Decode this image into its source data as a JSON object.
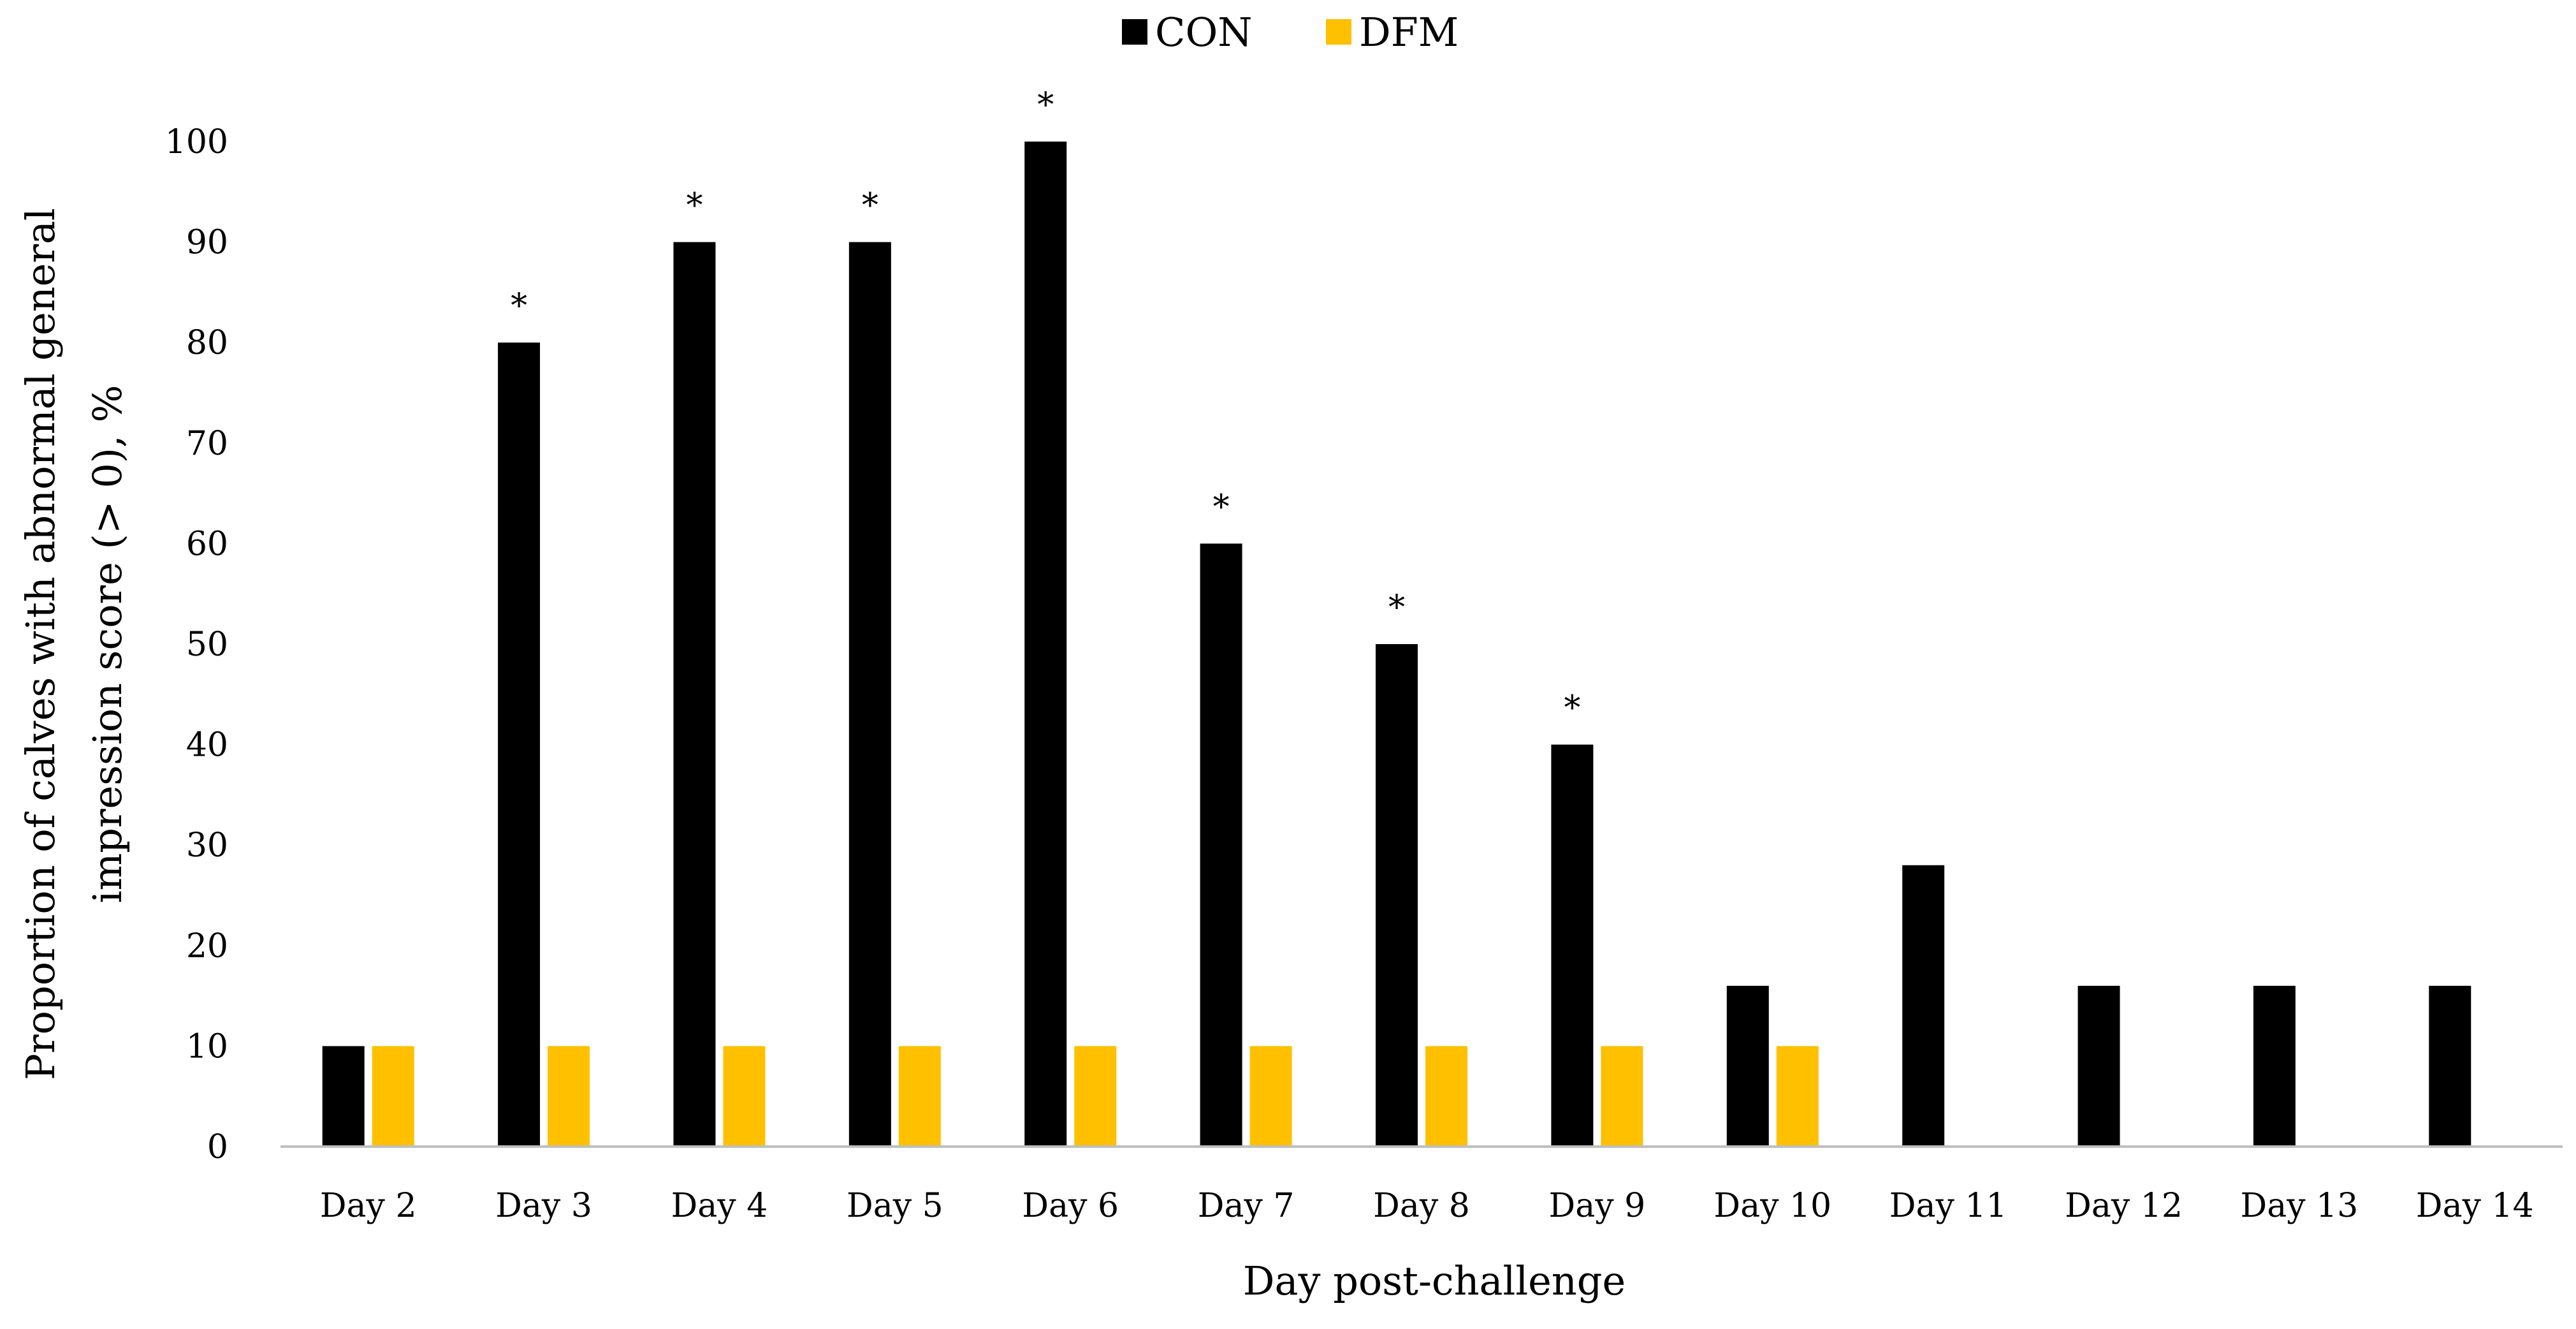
{
  "chart_data": {
    "type": "bar",
    "title": "",
    "xlabel": "Day post-challenge",
    "ylabel_lines": [
      "Proportion of calves with abnormal general",
      "impression score (> 0), %"
    ],
    "ylim": [
      0,
      100
    ],
    "yticks": [
      0,
      10,
      20,
      30,
      40,
      50,
      60,
      70,
      80,
      90,
      100
    ],
    "categories": [
      "Day 2",
      "Day 3",
      "Day 4",
      "Day 5",
      "Day 6",
      "Day 7",
      "Day 8",
      "Day 9",
      "Day 10",
      "Day 11",
      "Day 12",
      "Day 13",
      "Day 14"
    ],
    "series": [
      {
        "name": "CON",
        "color": "#000000",
        "values": [
          10,
          80,
          90,
          90,
          100,
          60,
          50,
          40,
          16,
          28,
          16,
          16,
          16
        ]
      },
      {
        "name": "DFM",
        "color": "#FFC000",
        "values": [
          10,
          10,
          10,
          10,
          10,
          10,
          10,
          10,
          10,
          0,
          0,
          0,
          0
        ]
      }
    ],
    "significance_marker": "*",
    "significant_categories": [
      "Day 3",
      "Day 4",
      "Day 5",
      "Day 6",
      "Day 7",
      "Day 8",
      "Day 9"
    ],
    "legend_position": "top-center",
    "grid": false
  }
}
